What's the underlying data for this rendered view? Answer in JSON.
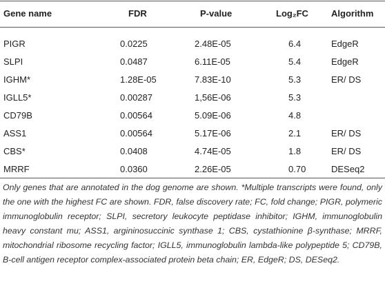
{
  "table": {
    "header": [
      "Gene name",
      "FDR",
      "P-value",
      "Log₂FC",
      "Algorithm"
    ],
    "rows": [
      [
        "PIGR",
        "0.0225",
        "2.48E-05",
        "6.4",
        "EdgeR"
      ],
      [
        "SLPI",
        "0.0487",
        "6.11E-05",
        "5.4",
        "EdgeR"
      ],
      [
        "IGHM*",
        "1.28E-05",
        "7.83E-10",
        "5.3",
        "ER/ DS"
      ],
      [
        "IGLL5*",
        "0.00287",
        "1,56E-06",
        "5.3"
      ],
      [
        "CD79B",
        "0.00564",
        "5.09E-06",
        "4.8"
      ],
      [
        "ASS1",
        "0.00564",
        "5.17E-06",
        "2.1",
        "ER/ DS"
      ],
      [
        "CBS*",
        "0.0408",
        "4.74E-05",
        "1.8",
        "ER/ DS"
      ],
      [
        "MRRF",
        "0.0360",
        "2.26E-05",
        "0.70",
        "DESeq2"
      ]
    ],
    "footnote": "Only genes that are annotated in the dog genome are shown. *Multiple transcripts were found, only the one with the highest FC are shown. FDR, false discovery rate; FC, fold change; PIGR, polymeric immunoglobulin receptor; SLPI, secretory leukocyte peptidase inhibitor; IGHM, immunoglobulin heavy constant mu; ASS1, argininosuccinic synthase 1; CBS, cystathionine β-synthase; MRRF, mitochondrial ribosome recycling factor; IGLL5, immunoglobulin lambda-like polypeptide 5; CD79B, B-cell antigen receptor complex-associated protein beta chain; ER, EdgeR; DS, DESeq2."
  }
}
